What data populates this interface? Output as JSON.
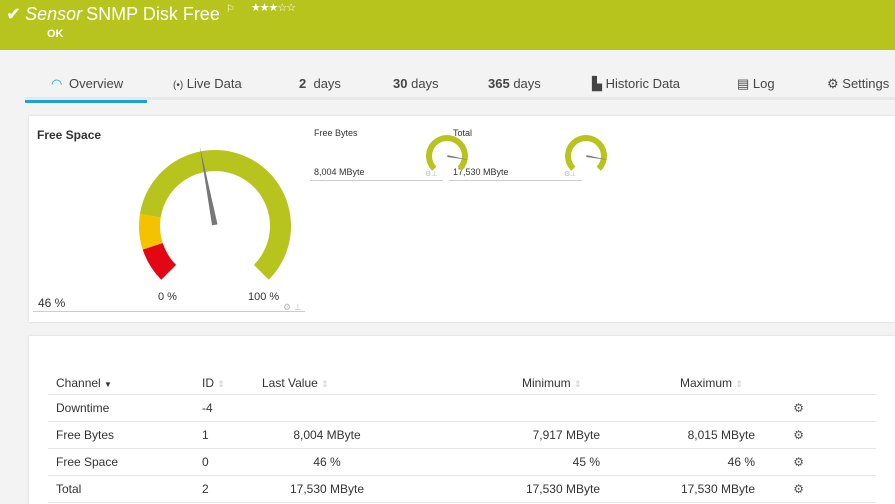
{
  "header": {
    "prefix": "Sensor",
    "title": "SNMP Disk Free",
    "status": "OK",
    "stars": "★★★☆☆",
    "colors": {
      "header": "#b7c41d"
    }
  },
  "tabs": [
    {
      "label": "Overview",
      "icon": "gauge-icon"
    },
    {
      "label": "Live Data",
      "icon": "broadcast-icon"
    },
    {
      "num": "2",
      "label": "days"
    },
    {
      "num": "30",
      "label": "days"
    },
    {
      "num": "365",
      "label": "days"
    },
    {
      "label": "Historic Data",
      "icon": "chart-icon"
    },
    {
      "label": "Log",
      "icon": "log-icon"
    },
    {
      "label": "Settings",
      "icon": "gear-icon"
    }
  ],
  "gauges": {
    "main": {
      "title": "Free Space",
      "value_label": "46 %",
      "value_percent": 46,
      "min_label": "0 %",
      "max_label": "100 %",
      "zones": [
        {
          "from": 0,
          "to": 10,
          "color": "#e30613"
        },
        {
          "from": 10,
          "to": 20,
          "color": "#f5c200"
        },
        {
          "from": 20,
          "to": 100,
          "color": "#b7c41d"
        }
      ]
    },
    "free_bytes": {
      "title": "Free Bytes",
      "value_label": "8,004 MByte",
      "value_fraction": 0.87
    },
    "total": {
      "title": "Total",
      "value_label": "17,530 MByte",
      "value_fraction": 0.87
    }
  },
  "table": {
    "headers": [
      "Channel",
      "ID",
      "Last Value",
      "Minimum",
      "Maximum"
    ],
    "rows": [
      [
        "Downtime",
        "-4",
        "",
        "",
        ""
      ],
      [
        "Free Bytes",
        "1",
        "8,004 MByte",
        "7,917 MByte",
        "8,015 MByte"
      ],
      [
        "Free Space",
        "0",
        "46 %",
        "45 %",
        "46 %"
      ],
      [
        "Total",
        "2",
        "17,530 MByte",
        "17,530 MByte",
        "17,530 MByte"
      ]
    ]
  }
}
